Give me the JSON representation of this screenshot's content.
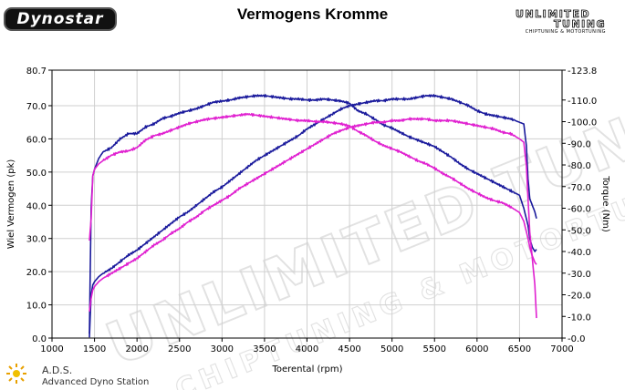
{
  "header": {
    "logo_left": "Dynostar",
    "title": "Vermogens Kromme",
    "logo_right_line1": "UNLIMITED",
    "logo_right_line2": "TUNING",
    "logo_right_line3": "CHIPTUNING & MOTORTUNING"
  },
  "footer": {
    "ads_abbrev": "A.D.S.",
    "ads_full": "Advanced Dyno Station"
  },
  "watermark": {
    "text": "UNLIMITED TUNING",
    "subtext": "CHIPTUNING & MOTORTUNING"
  },
  "colors": {
    "blue": "#1a1a9c",
    "magenta": "#e020d0",
    "grid": "#cfcfcf"
  },
  "chart_data": {
    "type": "line",
    "title": "Vermogens Kromme",
    "xlabel": "Toerental (rpm)",
    "ylabel_left": "Wiel Vermogen (pk)",
    "ylabel_right": "Torque (Nm)",
    "xlim": [
      1000,
      7000
    ],
    "ylim_left": [
      0,
      80.7
    ],
    "ylim_right": [
      0,
      123.8
    ],
    "x_ticks": [
      "1000",
      "1500",
      "2000",
      "2500",
      "3000",
      "3500",
      "4000",
      "4500",
      "5000",
      "5500",
      "6000",
      "6500",
      "7000"
    ],
    "y_left_ticks": [
      "0.0",
      "10.0",
      "20.0",
      "30.0",
      "40.0",
      "50.0",
      "60.0",
      "70.0",
      "80.7"
    ],
    "y_right_ticks": [
      "0.0",
      "10.0",
      "20.0",
      "30.0",
      "40.0",
      "50.0",
      "60.0",
      "70.0",
      "80.0",
      "90.0",
      "100.0",
      "110.0",
      "123.8"
    ],
    "grid": true,
    "series": [
      {
        "axis": "right",
        "color": "#1a1a9c",
        "x": [
          1440,
          1460,
          1480,
          1500,
          1550,
          1600,
          1700,
          1800,
          1900,
          2000,
          2100,
          2200,
          2300,
          2400,
          2500,
          2600,
          2700,
          2800,
          2900,
          3000,
          3100,
          3200,
          3300,
          3400,
          3500,
          3600,
          3700,
          3800,
          3900,
          4000,
          4100,
          4200,
          4300,
          4400,
          4500,
          4600,
          4700,
          4800,
          4900,
          5000,
          5100,
          5200,
          5300,
          5400,
          5500,
          5600,
          5700,
          5800,
          5900,
          6000,
          6100,
          6200,
          6300,
          6400,
          6500,
          6550,
          6600,
          6620,
          6650,
          6680,
          6700
        ],
        "y": [
          2.0,
          60.0,
          75.0,
          78.0,
          83.0,
          86.0,
          88.0,
          92.0,
          94.5,
          94.5,
          97.5,
          99.0,
          101.5,
          102.5,
          104.0,
          105.0,
          106.0,
          107.5,
          109.0,
          109.5,
          110.0,
          111.0,
          111.5,
          112.0,
          112.0,
          111.5,
          111.0,
          110.5,
          110.5,
          110.0,
          110.0,
          110.5,
          110.0,
          109.5,
          108.5,
          105.0,
          103.5,
          101.0,
          98.5,
          97.0,
          95.0,
          93.0,
          91.5,
          90.0,
          88.5,
          86.0,
          83.5,
          80.5,
          78.0,
          76.0,
          74.0,
          72.0,
          70.0,
          68.0,
          66.0,
          60.0,
          52.0,
          46.0,
          42.0,
          40.0,
          41.0
        ]
      },
      {
        "axis": "left",
        "color": "#1a1a9c",
        "x": [
          1440,
          1460,
          1480,
          1500,
          1550,
          1600,
          1700,
          1800,
          1900,
          2000,
          2100,
          2200,
          2300,
          2400,
          2500,
          2600,
          2700,
          2800,
          2900,
          3000,
          3100,
          3200,
          3300,
          3400,
          3500,
          3600,
          3700,
          3800,
          3900,
          4000,
          4100,
          4200,
          4300,
          4400,
          4500,
          4600,
          4700,
          4800,
          4900,
          5000,
          5100,
          5200,
          5300,
          5400,
          5500,
          5600,
          5700,
          5800,
          5900,
          6000,
          6100,
          6200,
          6300,
          6400,
          6500,
          6550,
          6580,
          6600,
          6620,
          6650,
          6680,
          6700
        ],
        "y": [
          0.2,
          13.0,
          16.0,
          17.0,
          18.5,
          19.5,
          21.0,
          23.0,
          25.0,
          26.5,
          28.5,
          30.5,
          32.5,
          34.5,
          36.5,
          38.0,
          40.0,
          42.0,
          44.0,
          45.5,
          47.5,
          49.5,
          51.5,
          53.5,
          55.0,
          56.5,
          58.0,
          59.5,
          61.0,
          63.0,
          64.5,
          66.0,
          67.5,
          69.0,
          70.0,
          70.5,
          71.0,
          71.5,
          71.5,
          72.0,
          72.0,
          72.0,
          72.5,
          73.0,
          73.0,
          72.5,
          72.0,
          71.0,
          70.0,
          68.5,
          67.5,
          67.0,
          66.5,
          66.0,
          65.0,
          64.5,
          58.0,
          48.0,
          42.0,
          40.0,
          38.0,
          36.0
        ]
      },
      {
        "axis": "right",
        "color": "#e020d0",
        "x": [
          1440,
          1460,
          1480,
          1500,
          1550,
          1600,
          1700,
          1800,
          1900,
          2000,
          2100,
          2200,
          2300,
          2400,
          2500,
          2600,
          2700,
          2800,
          2900,
          3000,
          3100,
          3200,
          3300,
          3400,
          3500,
          3600,
          3700,
          3800,
          3900,
          4000,
          4100,
          4200,
          4300,
          4400,
          4500,
          4600,
          4700,
          4800,
          4900,
          5000,
          5100,
          5200,
          5300,
          5400,
          5500,
          5600,
          5700,
          5800,
          5900,
          6000,
          6100,
          6200,
          6300,
          6400,
          6500,
          6550,
          6600,
          6620,
          6650,
          6680,
          6700
        ],
        "y": [
          45.0,
          55.0,
          75.0,
          78.0,
          80.5,
          82.0,
          84.5,
          86.0,
          86.5,
          88.0,
          91.5,
          93.5,
          94.5,
          96.0,
          97.5,
          99.0,
          100.0,
          101.0,
          101.5,
          102.0,
          102.5,
          103.0,
          103.5,
          103.0,
          102.5,
          102.0,
          101.5,
          101.0,
          100.5,
          100.5,
          100.0,
          100.0,
          99.5,
          99.0,
          98.0,
          95.5,
          93.5,
          91.0,
          89.0,
          87.5,
          86.0,
          84.0,
          82.0,
          80.5,
          78.5,
          76.0,
          74.0,
          71.5,
          69.0,
          67.0,
          65.0,
          63.5,
          62.5,
          60.5,
          58.0,
          54.0,
          46.0,
          42.0,
          38.0,
          35.0,
          34.0
        ]
      },
      {
        "axis": "left",
        "color": "#e020d0",
        "x": [
          1440,
          1460,
          1480,
          1500,
          1550,
          1600,
          1700,
          1800,
          1900,
          2000,
          2100,
          2200,
          2300,
          2400,
          2500,
          2600,
          2700,
          2800,
          2900,
          3000,
          3100,
          3200,
          3300,
          3400,
          3500,
          3600,
          3700,
          3800,
          3900,
          4000,
          4100,
          4200,
          4300,
          4400,
          4500,
          4600,
          4700,
          4800,
          4900,
          5000,
          5100,
          5200,
          5300,
          5400,
          5500,
          5600,
          5700,
          5800,
          5900,
          6000,
          6100,
          6200,
          6300,
          6400,
          6500,
          6550,
          6580,
          6600,
          6620,
          6650,
          6680,
          6700
        ],
        "y": [
          8.0,
          12.0,
          14.5,
          15.5,
          17.0,
          18.0,
          19.5,
          21.0,
          22.5,
          24.0,
          26.0,
          28.0,
          29.5,
          31.5,
          33.0,
          35.0,
          36.5,
          38.5,
          40.0,
          41.5,
          43.0,
          45.0,
          46.5,
          48.0,
          49.5,
          51.0,
          52.5,
          54.0,
          55.5,
          57.0,
          58.5,
          60.0,
          61.5,
          62.5,
          63.5,
          64.0,
          64.5,
          65.0,
          65.0,
          65.5,
          65.5,
          66.0,
          66.0,
          66.0,
          65.5,
          65.5,
          65.5,
          65.0,
          64.5,
          64.0,
          63.5,
          63.0,
          62.0,
          61.5,
          60.0,
          59.0,
          52.0,
          42.0,
          32.0,
          24.0,
          16.0,
          6.0
        ]
      }
    ]
  }
}
